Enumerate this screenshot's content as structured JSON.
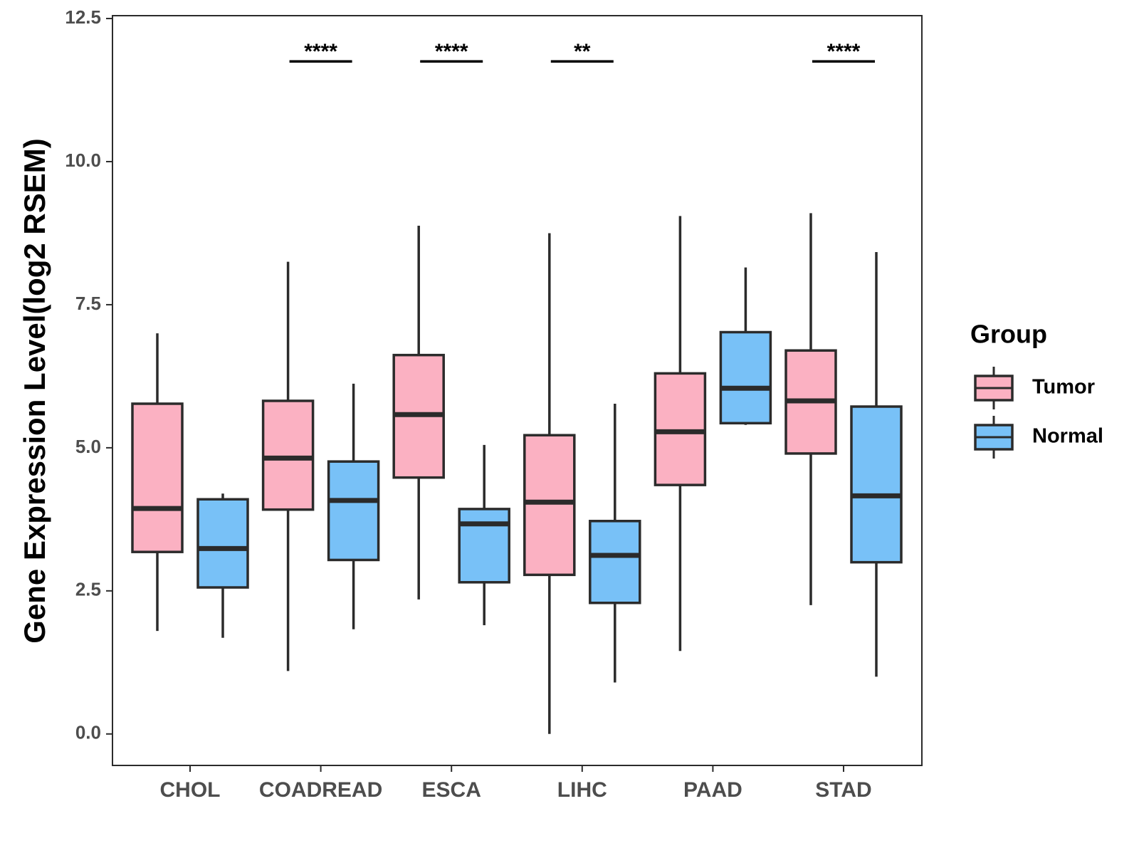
{
  "chart_data": {
    "type": "boxplot",
    "ylabel": "Gene Expression Level(log2 RSEM)",
    "xlabel": "",
    "ylim": [
      -0.55,
      12.55
    ],
    "yticks": [
      "0.0",
      "2.5",
      "5.0",
      "7.5",
      "10.0",
      "12.5"
    ],
    "ytick_values": [
      0,
      2.5,
      5,
      7.5,
      10,
      12.5
    ],
    "categories": [
      "CHOL",
      "COADREAD",
      "ESCA",
      "LIHC",
      "PAAD",
      "STAD"
    ],
    "legend": {
      "title": "Group",
      "position": "right",
      "entries": [
        {
          "name": "Tumor",
          "color": "#FBB1C2"
        },
        {
          "name": "Normal",
          "color": "#78C1F7"
        }
      ]
    },
    "series": [
      {
        "name": "Tumor",
        "color": "#FBB1C2",
        "boxes": [
          {
            "category": "CHOL",
            "min": 1.8,
            "q1": 3.18,
            "median": 3.94,
            "q3": 5.77,
            "max": 7.0
          },
          {
            "category": "COADREAD",
            "min": 1.1,
            "q1": 3.92,
            "median": 4.82,
            "q3": 5.82,
            "max": 8.25
          },
          {
            "category": "ESCA",
            "min": 2.35,
            "q1": 4.48,
            "median": 5.58,
            "q3": 6.62,
            "max": 8.88
          },
          {
            "category": "LIHC",
            "min": 0.0,
            "q1": 2.78,
            "median": 4.05,
            "q3": 5.22,
            "max": 8.75
          },
          {
            "category": "PAAD",
            "min": 1.45,
            "q1": 4.35,
            "median": 5.28,
            "q3": 6.3,
            "max": 9.05
          },
          {
            "category": "STAD",
            "min": 2.25,
            "q1": 4.9,
            "median": 5.82,
            "q3": 6.7,
            "max": 9.1
          }
        ]
      },
      {
        "name": "Normal",
        "color": "#78C1F7",
        "boxes": [
          {
            "category": "CHOL",
            "min": 1.68,
            "q1": 2.56,
            "median": 3.24,
            "q3": 4.1,
            "max": 4.2
          },
          {
            "category": "COADREAD",
            "min": 1.83,
            "q1": 3.04,
            "median": 4.08,
            "q3": 4.76,
            "max": 6.12
          },
          {
            "category": "ESCA",
            "min": 1.9,
            "q1": 2.65,
            "median": 3.67,
            "q3": 3.93,
            "max": 5.05
          },
          {
            "category": "LIHC",
            "min": 0.9,
            "q1": 2.29,
            "median": 3.12,
            "q3": 3.72,
            "max": 5.77
          },
          {
            "category": "PAAD",
            "min": 5.4,
            "q1": 5.43,
            "median": 6.04,
            "q3": 7.02,
            "max": 8.15
          },
          {
            "category": "STAD",
            "min": 1.0,
            "q1": 3.0,
            "median": 4.16,
            "q3": 5.72,
            "max": 8.42
          }
        ]
      }
    ],
    "significance": [
      {
        "category": "COADREAD",
        "label": "****"
      },
      {
        "category": "ESCA",
        "label": "****"
      },
      {
        "category": "LIHC",
        "label": "**"
      },
      {
        "category": "STAD",
        "label": "****"
      }
    ],
    "significance_level": 11.9
  }
}
